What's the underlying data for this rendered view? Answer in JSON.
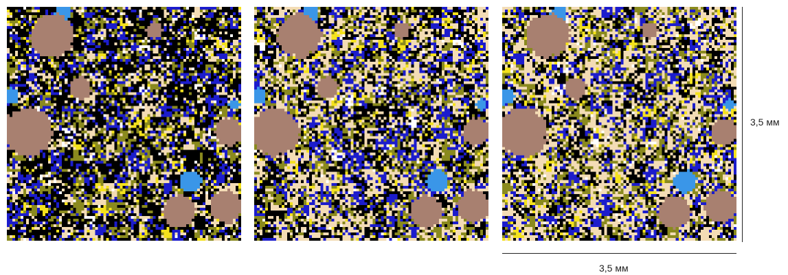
{
  "scale": {
    "vertical_label": "3,5 мм",
    "horizontal_label": "3,5 мм"
  },
  "panels": [
    {
      "id": "panel-1",
      "seed": 11,
      "dark_weight": 1.5
    },
    {
      "id": "panel-2",
      "seed": 23,
      "dark_weight": 0.9
    },
    {
      "id": "panel-3",
      "seed": 37,
      "dark_weight": 0.75
    }
  ],
  "palette": {
    "black": "#000000",
    "beige": "#f3dcb5",
    "blue": "#1c1ccc",
    "olive": "#8a8a1e",
    "yellow": "#f4e21c",
    "brown": "#a88070",
    "light_blue": "#3a96e8",
    "white": "#ffffff"
  }
}
